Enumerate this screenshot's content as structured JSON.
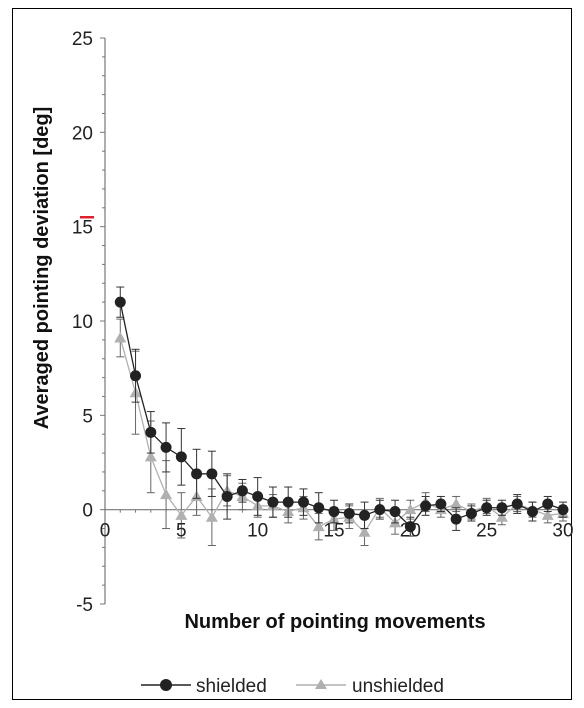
{
  "chart_data": {
    "type": "line",
    "xlabel": "Number of pointing movements",
    "ylabel": "Averaged pointing deviation [deg]",
    "xlim": [
      0,
      30
    ],
    "ylim": [
      -5,
      25
    ],
    "x_ticks": [
      "0",
      "5",
      "10",
      "15",
      "20",
      "25",
      "30"
    ],
    "y_ticks": [
      "-5",
      "0",
      "5",
      "10",
      "15",
      "20",
      "25"
    ],
    "reference_marker": {
      "y": 15.5,
      "color": "#e0202a"
    },
    "legend_position": "bottom-center",
    "series": [
      {
        "name": "shielded",
        "color": "#222222",
        "marker": "circle",
        "x": [
          1,
          2,
          3,
          4,
          5,
          6,
          7,
          8,
          9,
          10,
          11,
          12,
          13,
          14,
          15,
          16,
          17,
          18,
          19,
          20,
          21,
          22,
          23,
          24,
          25,
          26,
          27,
          28,
          29,
          30
        ],
        "values": [
          11.0,
          7.1,
          4.1,
          3.3,
          2.8,
          1.9,
          1.9,
          0.7,
          1.0,
          0.7,
          0.4,
          0.4,
          0.4,
          0.1,
          -0.1,
          -0.2,
          -0.3,
          0.0,
          -0.1,
          -0.9,
          0.2,
          0.3,
          -0.5,
          -0.2,
          0.1,
          0.1,
          0.3,
          -0.1,
          0.3,
          0.0
        ],
        "errors": [
          0.8,
          1.4,
          1.1,
          1.3,
          1.5,
          1.3,
          1.2,
          1.2,
          0.6,
          1.0,
          0.8,
          0.8,
          0.7,
          0.8,
          0.6,
          0.5,
          0.7,
          0.5,
          0.6,
          0.5,
          0.5,
          0.4,
          0.6,
          0.4,
          0.4,
          0.4,
          0.5,
          0.5,
          0.4,
          0.4
        ]
      },
      {
        "name": "unshielded",
        "color": "#b0b0b0",
        "marker": "triangle",
        "x": [
          1,
          2,
          3,
          4,
          5,
          6,
          7,
          8,
          9,
          10,
          11,
          12,
          13,
          14,
          15,
          16,
          17,
          18,
          19,
          20,
          21,
          22,
          23,
          24,
          25,
          26,
          27,
          28,
          29,
          30
        ],
        "values": [
          9.1,
          6.2,
          2.8,
          0.8,
          -0.3,
          0.7,
          -0.4,
          1.0,
          0.7,
          0.2,
          0.2,
          -0.1,
          0.1,
          -0.9,
          -0.5,
          -0.4,
          -1.2,
          0.1,
          -0.7,
          0.0,
          0.4,
          0.0,
          0.3,
          -0.1,
          0.2,
          -0.4,
          0.3,
          0.0,
          -0.3,
          -0.2
        ],
        "errors": [
          1.0,
          2.2,
          1.9,
          1.8,
          1.2,
          1.0,
          1.5,
          0.8,
          0.7,
          0.6,
          0.6,
          0.6,
          0.6,
          0.7,
          0.6,
          0.6,
          0.7,
          0.5,
          0.6,
          0.5,
          0.5,
          0.4,
          0.4,
          0.4,
          0.4,
          0.4,
          0.4,
          0.4,
          0.4,
          0.4
        ]
      }
    ]
  }
}
